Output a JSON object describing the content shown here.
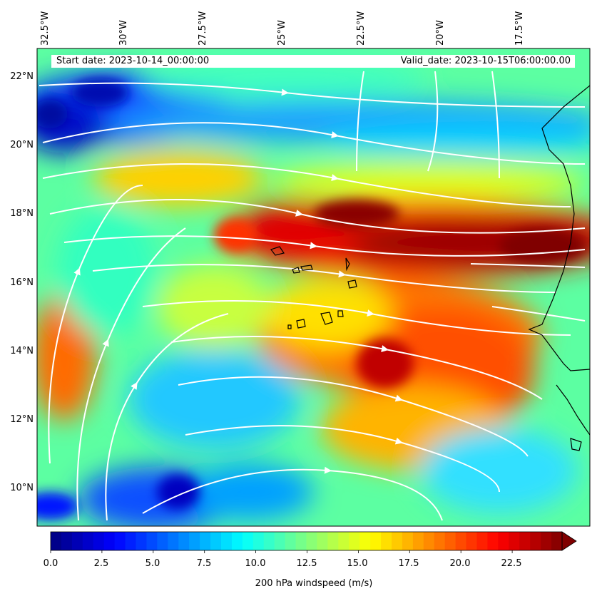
{
  "header": {
    "start_date": "Start date: 2023-10-14_00:00:00",
    "valid_date": "Valid_date: 2023-10-15T06:00:00.00"
  },
  "axes": {
    "lon_ticks": [
      "32.5°W",
      "30°W",
      "27.5°W",
      "25°W",
      "22.5°W",
      "20°W",
      "17.5°W"
    ],
    "lat_ticks": [
      "22°N",
      "20°N",
      "18°N",
      "16°N",
      "14°N",
      "12°N",
      "10°N"
    ]
  },
  "colorbar": {
    "label": "200 hPa windspeed (m/s)",
    "ticks": [
      "0.0",
      "2.5",
      "5.0",
      "7.5",
      "10.0",
      "12.5",
      "15.0",
      "17.5",
      "20.0",
      "22.5"
    ],
    "min": 0,
    "max": 25,
    "extend": "max",
    "colormap": "jet"
  },
  "map": {
    "field": "200 hPa windspeed",
    "units": "m/s",
    "lon_range": [
      -32.5,
      -15.5
    ],
    "lat_range": [
      8.9,
      22.8
    ],
    "streamlines": "white",
    "coastline_color": "#000000"
  }
}
